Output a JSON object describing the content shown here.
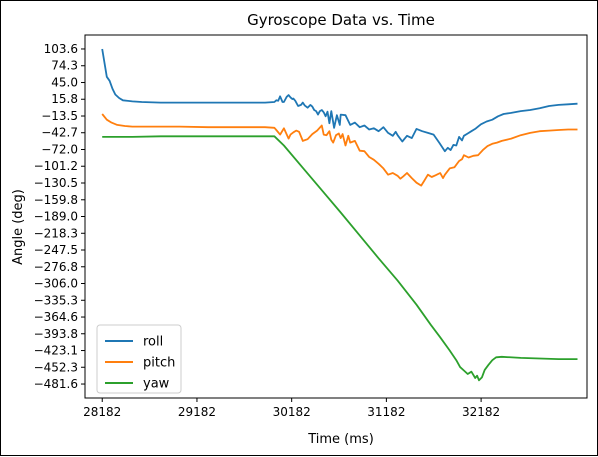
{
  "chart_data": {
    "type": "line",
    "title": "Gyroscope Data vs. Time",
    "xlabel": "Time (ms)",
    "ylabel": "Angle (deg)",
    "xlim": [
      28000,
      33300
    ],
    "ylim": [
      -506,
      128
    ],
    "x_ticks": [
      28182,
      29182,
      30182,
      31182,
      32182
    ],
    "y_ticks": [
      "103.6",
      "74.3",
      "45.0",
      "15.8",
      "−13.5",
      "−42.7",
      "−72.0",
      "−101.2",
      "−130.5",
      "−159.8",
      "−189.0",
      "−218.3",
      "−247.5",
      "−276.8",
      "−306.0",
      "−335.3",
      "−364.6",
      "−393.8",
      "−423.1",
      "−452.3",
      "−481.6"
    ],
    "grid": false,
    "legend_position": "lower-left",
    "series": [
      {
        "name": "roll",
        "color": "#1f77b4",
        "points": [
          [
            28182,
            103.6
          ],
          [
            28230,
            55
          ],
          [
            28260,
            48
          ],
          [
            28290,
            34
          ],
          [
            28320,
            24
          ],
          [
            28360,
            18
          ],
          [
            28400,
            14
          ],
          [
            28500,
            12
          ],
          [
            28600,
            11
          ],
          [
            28800,
            10
          ],
          [
            29000,
            10
          ],
          [
            29300,
            10
          ],
          [
            29600,
            10
          ],
          [
            29900,
            10
          ],
          [
            30000,
            11
          ],
          [
            30020,
            14
          ],
          [
            30040,
            13
          ],
          [
            30060,
            21
          ],
          [
            30085,
            11
          ],
          [
            30100,
            11
          ],
          [
            30130,
            20
          ],
          [
            30150,
            23
          ],
          [
            30170,
            19
          ],
          [
            30190,
            16
          ],
          [
            30200,
            17
          ],
          [
            30220,
            13
          ],
          [
            30250,
            4
          ],
          [
            30280,
            6
          ],
          [
            30300,
            10
          ],
          [
            30320,
            5
          ],
          [
            30350,
            1
          ],
          [
            30380,
            6
          ],
          [
            30400,
            3
          ],
          [
            30420,
            -3
          ],
          [
            30440,
            -5
          ],
          [
            30460,
            -11
          ],
          [
            30480,
            -5
          ],
          [
            30500,
            -3
          ],
          [
            30520,
            -7
          ],
          [
            30540,
            -14
          ],
          [
            30560,
            -6
          ],
          [
            30580,
            -26
          ],
          [
            30600,
            -5
          ],
          [
            30630,
            -34
          ],
          [
            30660,
            -12
          ],
          [
            30690,
            -29
          ],
          [
            30700,
            -11
          ],
          [
            30750,
            -12
          ],
          [
            30800,
            -29
          ],
          [
            30850,
            -25
          ],
          [
            30900,
            -33
          ],
          [
            30950,
            -30
          ],
          [
            31000,
            -37
          ],
          [
            31050,
            -35
          ],
          [
            31100,
            -40
          ],
          [
            31150,
            -33
          ],
          [
            31200,
            -43
          ],
          [
            31250,
            -48
          ],
          [
            31280,
            -41
          ],
          [
            31300,
            -47
          ],
          [
            31350,
            -58
          ],
          [
            31400,
            -48
          ],
          [
            31450,
            -52
          ],
          [
            31500,
            -36
          ],
          [
            31560,
            -40
          ],
          [
            31620,
            -43
          ],
          [
            31680,
            -46
          ],
          [
            31740,
            -60
          ],
          [
            31800,
            -75
          ],
          [
            31830,
            -69
          ],
          [
            31860,
            -73
          ],
          [
            31890,
            -64
          ],
          [
            31920,
            -65
          ],
          [
            31950,
            -50
          ],
          [
            31980,
            -56
          ],
          [
            32000,
            -48
          ],
          [
            32040,
            -44
          ],
          [
            32080,
            -40
          ],
          [
            32120,
            -36
          ],
          [
            32180,
            -28
          ],
          [
            32240,
            -23
          ],
          [
            32300,
            -20
          ],
          [
            32360,
            -14
          ],
          [
            32420,
            -10
          ],
          [
            32500,
            -8
          ],
          [
            32600,
            -5
          ],
          [
            32700,
            -3
          ],
          [
            32800,
            0
          ],
          [
            32900,
            4
          ],
          [
            33000,
            6
          ],
          [
            33100,
            7
          ],
          [
            33200,
            8
          ]
        ]
      },
      {
        "name": "pitch",
        "color": "#ff7f0e",
        "points": [
          [
            28182,
            -10
          ],
          [
            28230,
            -20
          ],
          [
            28280,
            -25
          ],
          [
            28340,
            -29
          ],
          [
            28420,
            -31
          ],
          [
            28500,
            -32
          ],
          [
            28700,
            -32
          ],
          [
            29000,
            -32
          ],
          [
            29300,
            -33
          ],
          [
            29600,
            -33
          ],
          [
            29900,
            -33
          ],
          [
            30000,
            -34
          ],
          [
            30020,
            -38
          ],
          [
            30060,
            -46
          ],
          [
            30100,
            -35
          ],
          [
            30150,
            -53
          ],
          [
            30170,
            -46
          ],
          [
            30200,
            -42
          ],
          [
            30230,
            -39
          ],
          [
            30260,
            -41
          ],
          [
            30300,
            -57
          ],
          [
            30350,
            -54
          ],
          [
            30400,
            -45
          ],
          [
            30450,
            -39
          ],
          [
            30500,
            -30
          ],
          [
            30520,
            -46
          ],
          [
            30550,
            -47
          ],
          [
            30580,
            -40
          ],
          [
            30600,
            -55
          ],
          [
            30620,
            -60
          ],
          [
            30650,
            -47
          ],
          [
            30680,
            -44
          ],
          [
            30700,
            -52
          ],
          [
            30720,
            -45
          ],
          [
            30750,
            -65
          ],
          [
            30780,
            -48
          ],
          [
            30800,
            -60
          ],
          [
            30850,
            -57
          ],
          [
            30900,
            -74
          ],
          [
            30950,
            -75
          ],
          [
            31000,
            -85
          ],
          [
            31050,
            -90
          ],
          [
            31100,
            -97
          ],
          [
            31150,
            -105
          ],
          [
            31200,
            -116
          ],
          [
            31250,
            -113
          ],
          [
            31300,
            -118
          ],
          [
            31330,
            -123
          ],
          [
            31360,
            -119
          ],
          [
            31400,
            -113
          ],
          [
            31450,
            -122
          ],
          [
            31500,
            -130
          ],
          [
            31550,
            -135
          ],
          [
            31580,
            -127
          ],
          [
            31620,
            -116
          ],
          [
            31660,
            -120
          ],
          [
            31700,
            -117
          ],
          [
            31750,
            -113
          ],
          [
            31780,
            -122
          ],
          [
            31800,
            -116
          ],
          [
            31850,
            -105
          ],
          [
            31900,
            -103
          ],
          [
            31950,
            -92
          ],
          [
            31980,
            -89
          ],
          [
            32000,
            -82
          ],
          [
            32050,
            -86
          ],
          [
            32100,
            -83
          ],
          [
            32150,
            -82
          ],
          [
            32200,
            -73
          ],
          [
            32250,
            -66
          ],
          [
            32300,
            -62
          ],
          [
            32350,
            -60
          ],
          [
            32400,
            -57
          ],
          [
            32500,
            -53
          ],
          [
            32600,
            -47
          ],
          [
            32700,
            -43
          ],
          [
            32800,
            -40
          ],
          [
            32900,
            -39
          ],
          [
            33000,
            -38
          ],
          [
            33100,
            -37
          ],
          [
            33200,
            -37
          ]
        ]
      },
      {
        "name": "yaw",
        "color": "#2ca02c",
        "points": [
          [
            28182,
            -50
          ],
          [
            28500,
            -50
          ],
          [
            28800,
            -49
          ],
          [
            29100,
            -49
          ],
          [
            29400,
            -49
          ],
          [
            29700,
            -49
          ],
          [
            29900,
            -49
          ],
          [
            30000,
            -49
          ],
          [
            30100,
            -65
          ],
          [
            30300,
            -104
          ],
          [
            30500,
            -143
          ],
          [
            30700,
            -182
          ],
          [
            30900,
            -222
          ],
          [
            31100,
            -262
          ],
          [
            31300,
            -301
          ],
          [
            31500,
            -343
          ],
          [
            31650,
            -378
          ],
          [
            31750,
            -400
          ],
          [
            31850,
            -423
          ],
          [
            31920,
            -440
          ],
          [
            31960,
            -452
          ],
          [
            32000,
            -458
          ],
          [
            32040,
            -464
          ],
          [
            32080,
            -460
          ],
          [
            32120,
            -471
          ],
          [
            32140,
            -467
          ],
          [
            32160,
            -475
          ],
          [
            32190,
            -470
          ],
          [
            32220,
            -457
          ],
          [
            32260,
            -448
          ],
          [
            32300,
            -440
          ],
          [
            32340,
            -435
          ],
          [
            32400,
            -434
          ],
          [
            32600,
            -436
          ],
          [
            32800,
            -437
          ],
          [
            33000,
            -438
          ],
          [
            33200,
            -438
          ]
        ]
      }
    ]
  }
}
